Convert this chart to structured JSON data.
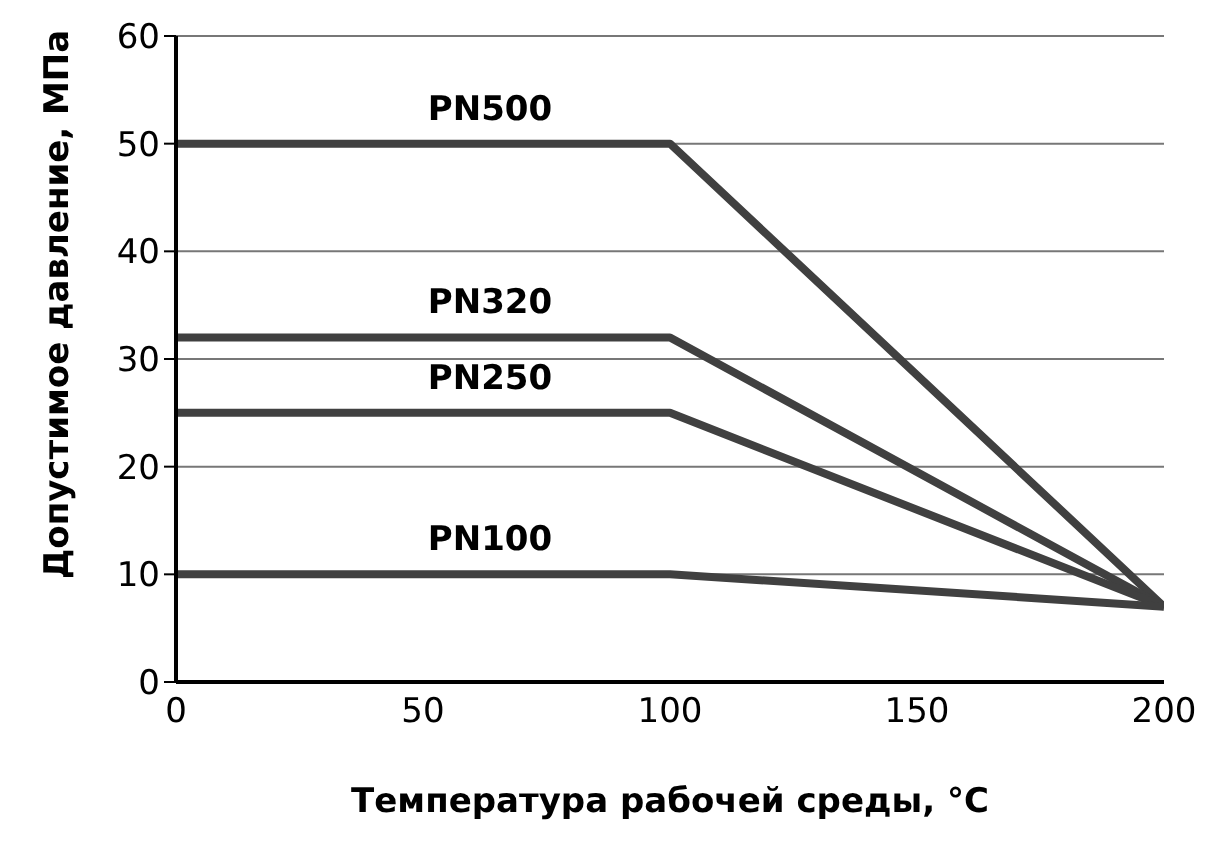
{
  "chart_data": {
    "type": "line",
    "xlabel": "Температура рабочей среды, °C",
    "ylabel": "Допустимое давление, МПа",
    "x": [
      0,
      100,
      200
    ],
    "series": [
      {
        "name": "PN500",
        "color": "#404040",
        "values": [
          50,
          50,
          7
        ]
      },
      {
        "name": "PN320",
        "color": "#404040",
        "values": [
          32,
          32,
          7
        ]
      },
      {
        "name": "PN250",
        "color": "#404040",
        "values": [
          25,
          25,
          7
        ]
      },
      {
        "name": "PN100",
        "color": "#404040",
        "values": [
          10,
          10,
          7
        ]
      }
    ],
    "xlim": [
      0,
      200
    ],
    "xticks": [
      0,
      50,
      100,
      150,
      200
    ],
    "ylim": [
      0,
      60
    ],
    "yticks": [
      0,
      10,
      20,
      30,
      40,
      50,
      60
    ],
    "grid": "y",
    "marker": "none",
    "line_style": "solid",
    "legend": false
  }
}
